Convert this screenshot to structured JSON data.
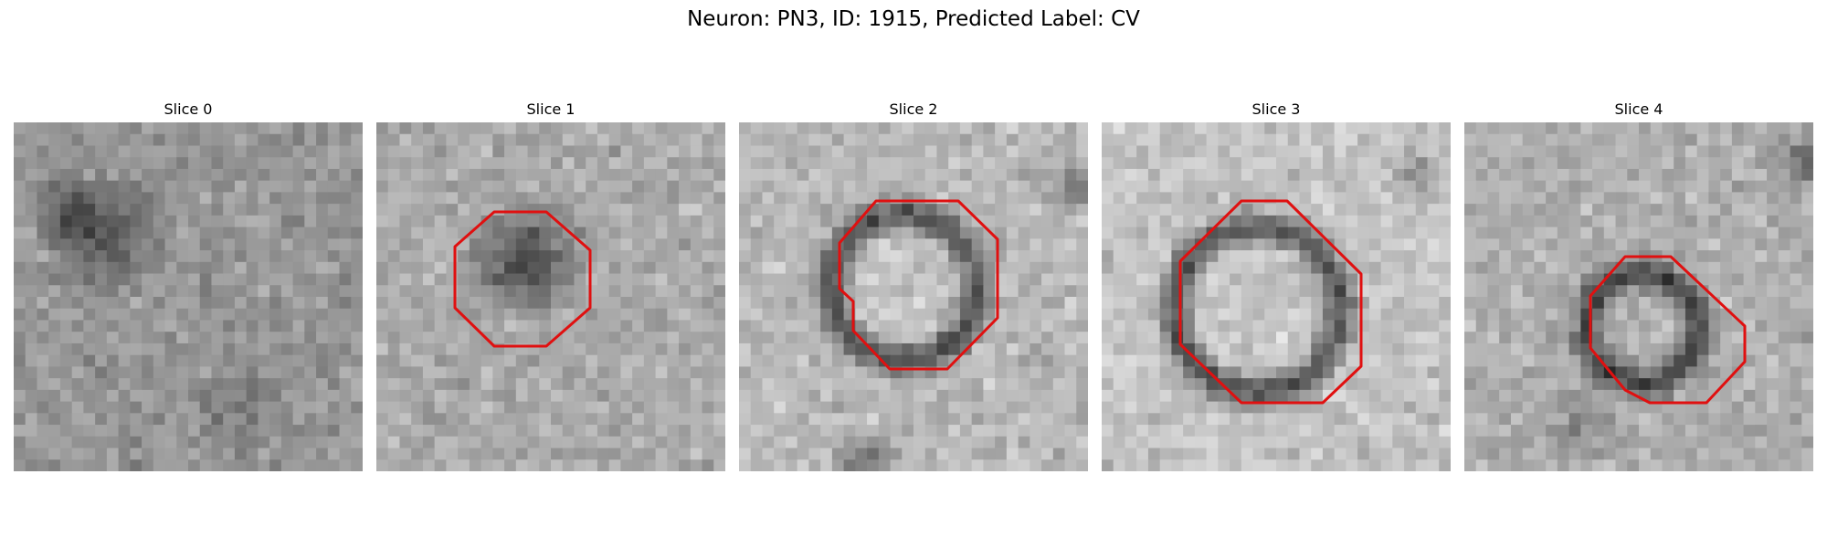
{
  "figure": {
    "title": "Neuron: PN3, ID: 1915, Predicted Label: CV",
    "contour_color": "#e01010"
  },
  "slices": [
    {
      "title": "Slice 0",
      "has_contour": false
    },
    {
      "title": "Slice 1",
      "has_contour": true
    },
    {
      "title": "Slice 2",
      "has_contour": true
    },
    {
      "title": "Slice 3",
      "has_contour": true
    },
    {
      "title": "Slice 4",
      "has_contour": true
    }
  ]
}
